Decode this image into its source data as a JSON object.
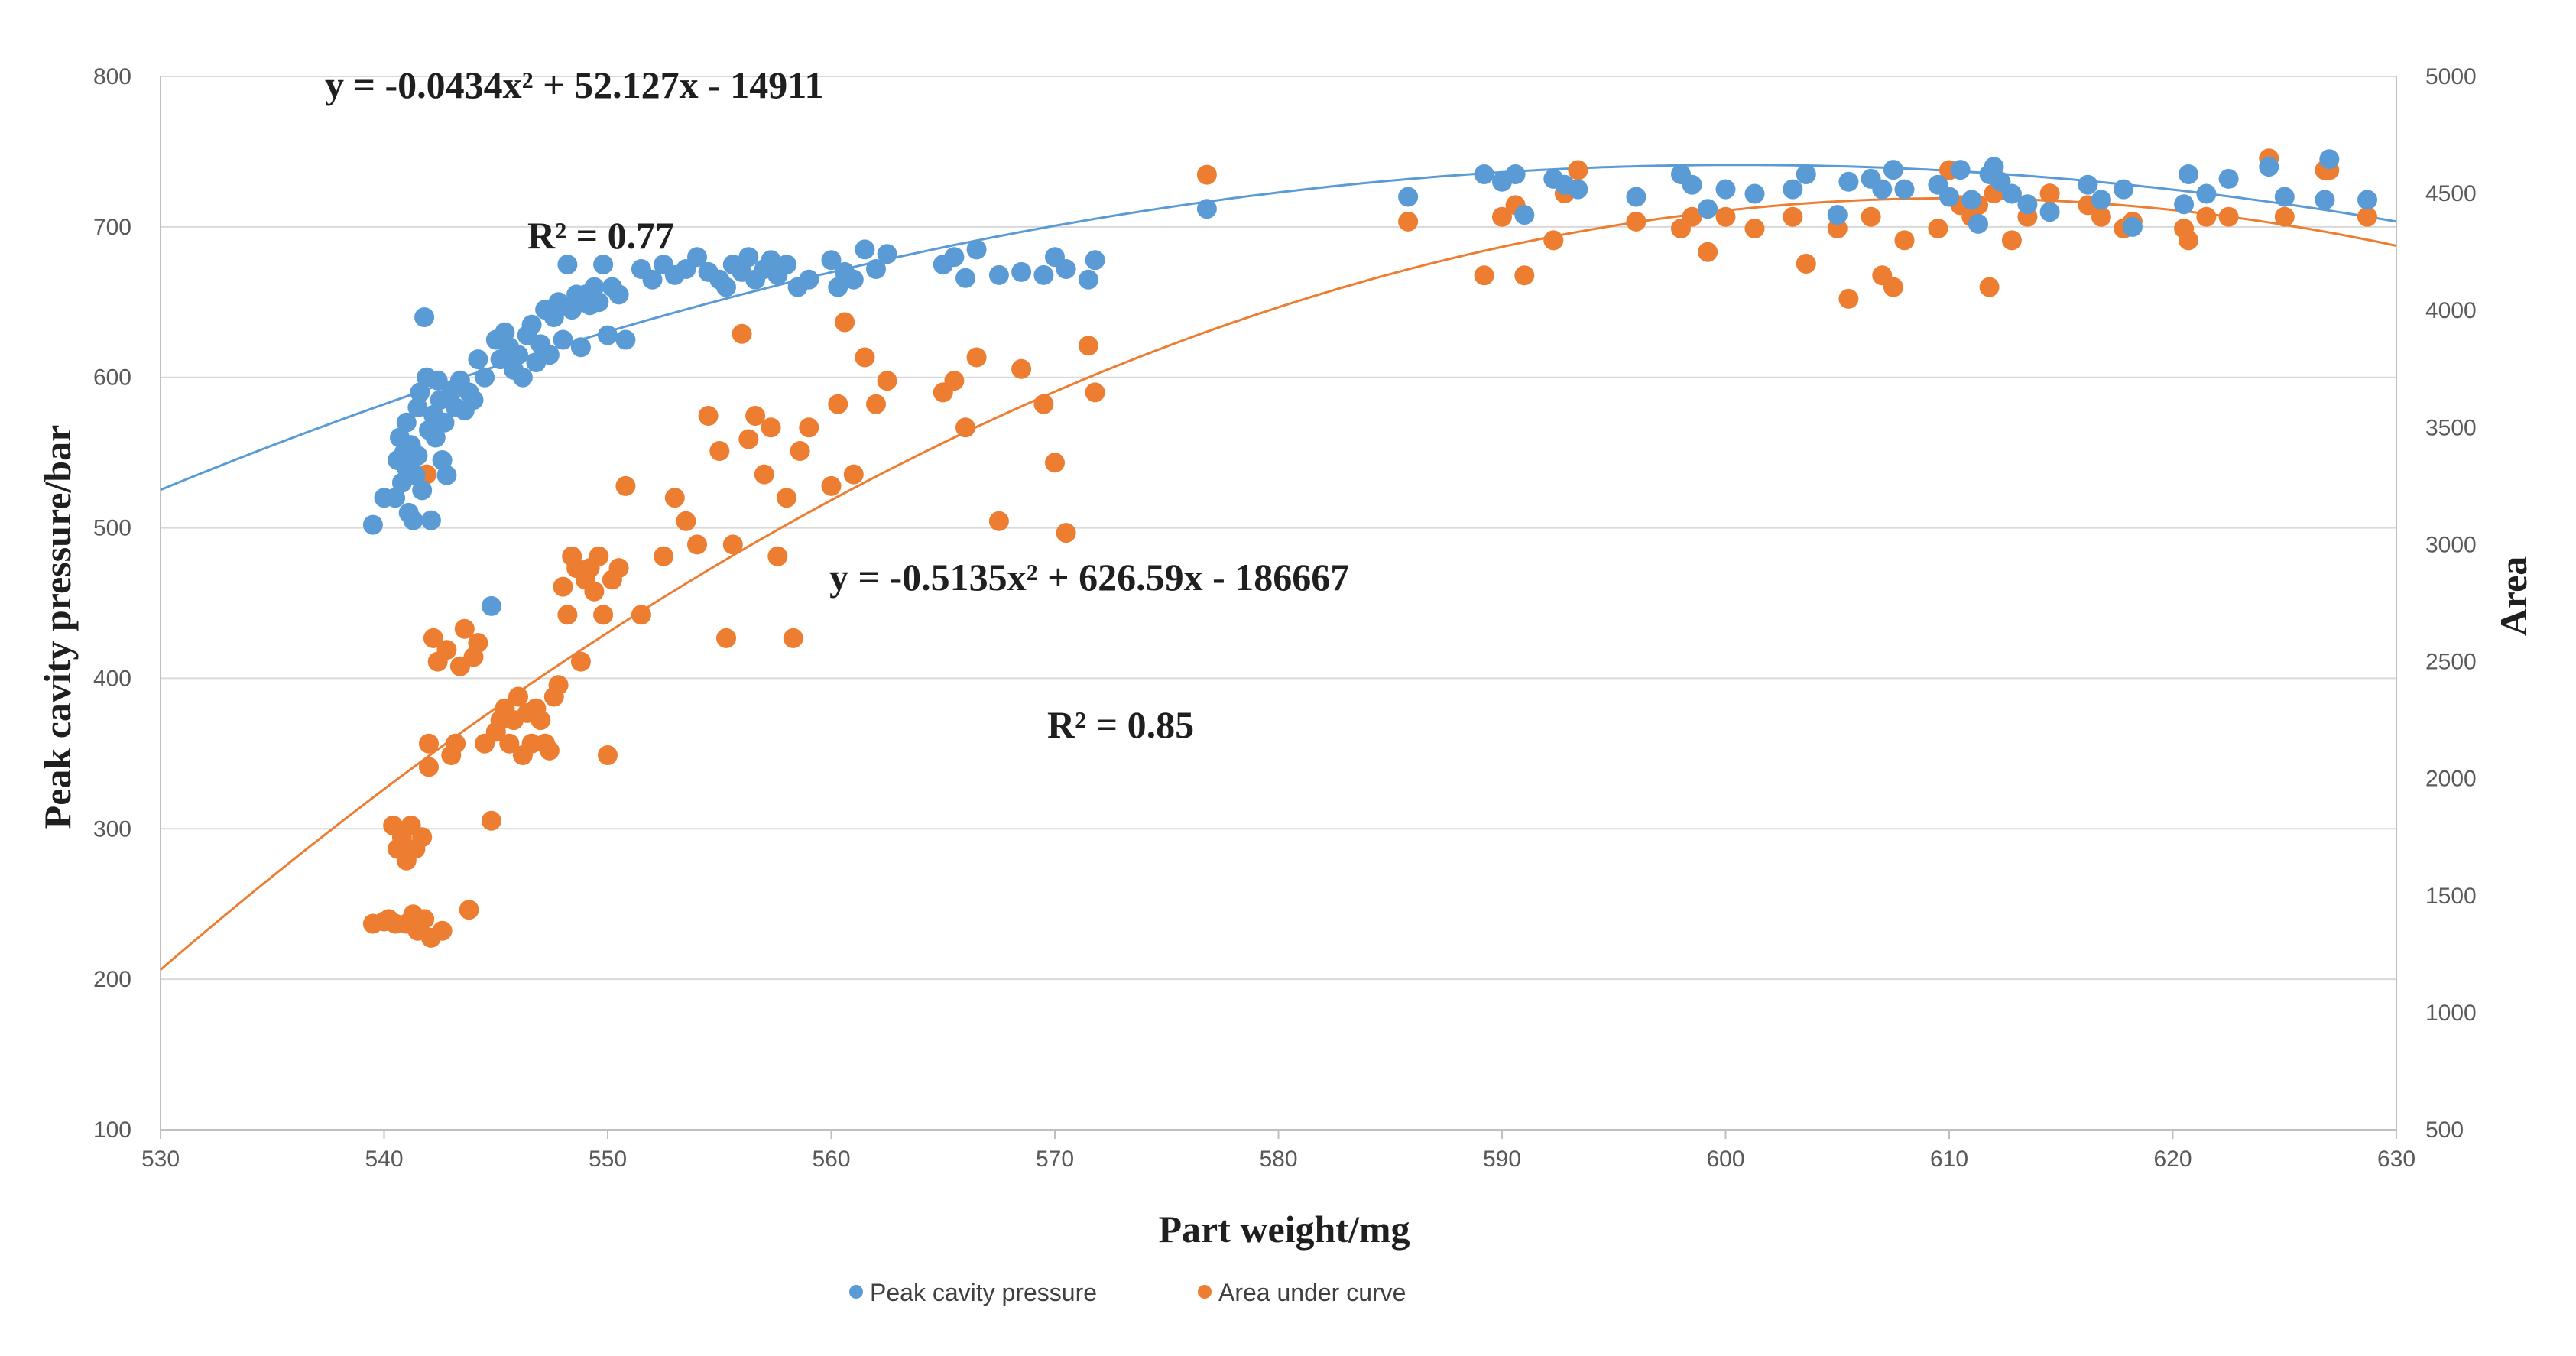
{
  "chart_data": {
    "type": "scatter",
    "title": "",
    "xlabel": "Part weight/mg",
    "ylabel_left": "Peak cavity pressure/bar",
    "ylabel_right": "Area",
    "xlim": [
      530,
      630
    ],
    "ylim_left": [
      100,
      800
    ],
    "ylim_right": [
      500,
      5000
    ],
    "xticks": [
      530,
      540,
      550,
      560,
      570,
      580,
      590,
      600,
      610,
      620,
      630
    ],
    "yticks_left": [
      100,
      200,
      300,
      400,
      500,
      600,
      700,
      800
    ],
    "yticks_right": [
      500,
      1000,
      1500,
      2000,
      2500,
      3000,
      3500,
      4000,
      4500,
      5000
    ],
    "grid": "horizontal",
    "legend_position": "bottom-center",
    "series": [
      {
        "name": "Peak cavity pressure",
        "axis": "left",
        "color": "#5B9BD5",
        "points": [
          [
            539.5,
            502
          ],
          [
            540,
            520
          ],
          [
            540.5,
            520
          ],
          [
            540.6,
            545
          ],
          [
            540.7,
            560
          ],
          [
            540.8,
            530
          ],
          [
            540.9,
            550
          ],
          [
            541,
            570
          ],
          [
            541,
            540
          ],
          [
            541.1,
            510
          ],
          [
            541.2,
            555
          ],
          [
            541.3,
            505
          ],
          [
            541.4,
            535
          ],
          [
            541.5,
            580
          ],
          [
            541.5,
            548
          ],
          [
            541.6,
            590
          ],
          [
            541.7,
            525
          ],
          [
            541.8,
            640
          ],
          [
            541.9,
            600
          ],
          [
            542,
            565
          ],
          [
            542.1,
            505
          ],
          [
            542.2,
            575
          ],
          [
            542.3,
            560
          ],
          [
            542.4,
            598
          ],
          [
            542.5,
            585
          ],
          [
            542.6,
            545
          ],
          [
            542.7,
            570
          ],
          [
            542.8,
            535
          ],
          [
            543,
            590
          ],
          [
            543.2,
            580
          ],
          [
            543.4,
            598
          ],
          [
            543.6,
            578
          ],
          [
            543.8,
            590
          ],
          [
            544,
            585
          ],
          [
            544.2,
            612
          ],
          [
            544.5,
            600
          ],
          [
            544.8,
            448
          ],
          [
            545,
            625
          ],
          [
            545.2,
            612
          ],
          [
            545.4,
            630
          ],
          [
            545.6,
            620
          ],
          [
            545.8,
            605
          ],
          [
            546,
            615
          ],
          [
            546.2,
            600
          ],
          [
            546.4,
            628
          ],
          [
            546.6,
            635
          ],
          [
            546.8,
            610
          ],
          [
            547,
            622
          ],
          [
            547.2,
            645
          ],
          [
            547.4,
            615
          ],
          [
            547.6,
            640
          ],
          [
            547.8,
            650
          ],
          [
            548,
            625
          ],
          [
            548.2,
            675
          ],
          [
            548.4,
            645
          ],
          [
            548.6,
            655
          ],
          [
            548.8,
            620
          ],
          [
            549,
            655
          ],
          [
            549.2,
            648
          ],
          [
            549.4,
            660
          ],
          [
            549.6,
            650
          ],
          [
            549.8,
            675
          ],
          [
            550,
            628
          ],
          [
            550.2,
            660
          ],
          [
            550.5,
            655
          ],
          [
            550.8,
            625
          ],
          [
            551.5,
            672
          ],
          [
            552,
            665
          ],
          [
            552.5,
            675
          ],
          [
            553,
            668
          ],
          [
            553.5,
            672
          ],
          [
            554,
            680
          ],
          [
            554.5,
            670
          ],
          [
            555,
            665
          ],
          [
            555.3,
            660
          ],
          [
            555.6,
            675
          ],
          [
            556,
            670
          ],
          [
            556.3,
            680
          ],
          [
            556.6,
            665
          ],
          [
            557,
            672
          ],
          [
            557.3,
            678
          ],
          [
            557.6,
            668
          ],
          [
            558,
            675
          ],
          [
            558.5,
            660
          ],
          [
            559,
            665
          ],
          [
            560,
            678
          ],
          [
            560.3,
            660
          ],
          [
            560.6,
            670
          ],
          [
            561,
            665
          ],
          [
            561.5,
            685
          ],
          [
            562,
            672
          ],
          [
            562.5,
            682
          ],
          [
            565,
            675
          ],
          [
            565.5,
            680
          ],
          [
            566,
            666
          ],
          [
            566.5,
            685
          ],
          [
            567.5,
            668
          ],
          [
            568.5,
            670
          ],
          [
            569.5,
            668
          ],
          [
            570,
            680
          ],
          [
            570.5,
            672
          ],
          [
            571.5,
            665
          ],
          [
            571.8,
            678
          ],
          [
            576.8,
            712
          ],
          [
            585.8,
            720
          ],
          [
            589.2,
            735
          ],
          [
            590,
            730
          ],
          [
            590.6,
            735
          ],
          [
            591,
            708
          ],
          [
            592.3,
            732
          ],
          [
            592.8,
            728
          ],
          [
            593.4,
            725
          ],
          [
            596,
            720
          ],
          [
            598,
            735
          ],
          [
            598.5,
            728
          ],
          [
            599.2,
            712
          ],
          [
            600,
            725
          ],
          [
            601.3,
            722
          ],
          [
            603,
            725
          ],
          [
            603.6,
            735
          ],
          [
            605,
            708
          ],
          [
            605.5,
            730
          ],
          [
            606.5,
            732
          ],
          [
            607,
            725
          ],
          [
            607.5,
            738
          ],
          [
            608,
            725
          ],
          [
            609.5,
            728
          ],
          [
            610,
            720
          ],
          [
            610.5,
            738
          ],
          [
            611,
            718
          ],
          [
            611.3,
            702
          ],
          [
            611.8,
            735
          ],
          [
            612,
            740
          ],
          [
            612.3,
            730
          ],
          [
            612.8,
            722
          ],
          [
            613.5,
            715
          ],
          [
            614.5,
            710
          ],
          [
            616.2,
            728
          ],
          [
            616.8,
            718
          ],
          [
            617.8,
            725
          ],
          [
            618.2,
            700
          ],
          [
            620.5,
            715
          ],
          [
            620.7,
            735
          ],
          [
            621.5,
            722
          ],
          [
            622.5,
            732
          ],
          [
            624.3,
            740
          ],
          [
            625,
            720
          ],
          [
            626.8,
            718
          ],
          [
            627,
            745
          ],
          [
            628.7,
            718
          ]
        ]
      },
      {
        "name": "Area under curve",
        "axis": "right",
        "color": "#ED7D31",
        "points": [
          [
            539.5,
            1380
          ],
          [
            540,
            1390
          ],
          [
            540.2,
            1400
          ],
          [
            540.4,
            1800
          ],
          [
            540.5,
            1380
          ],
          [
            540.6,
            1700
          ],
          [
            540.8,
            1750
          ],
          [
            541,
            1380
          ],
          [
            541,
            1650
          ],
          [
            541.2,
            1800
          ],
          [
            541.3,
            1420
          ],
          [
            541.4,
            1700
          ],
          [
            541.5,
            1350
          ],
          [
            541.6,
            1380
          ],
          [
            541.7,
            1750
          ],
          [
            541.8,
            1400
          ],
          [
            541.9,
            3300
          ],
          [
            542,
            2050
          ],
          [
            542,
            2150
          ],
          [
            542.1,
            1320
          ],
          [
            542.2,
            2600
          ],
          [
            542.4,
            2500
          ],
          [
            542.6,
            1350
          ],
          [
            542.8,
            2550
          ],
          [
            543,
            2100
          ],
          [
            543.2,
            2150
          ],
          [
            543.4,
            2480
          ],
          [
            543.6,
            2640
          ],
          [
            543.8,
            1440
          ],
          [
            544,
            2520
          ],
          [
            544.2,
            2580
          ],
          [
            544.5,
            2150
          ],
          [
            544.8,
            1820
          ],
          [
            545,
            2200
          ],
          [
            545.2,
            2250
          ],
          [
            545.4,
            2300
          ],
          [
            545.6,
            2150
          ],
          [
            545.8,
            2250
          ],
          [
            546,
            2350
          ],
          [
            546.2,
            2100
          ],
          [
            546.4,
            2280
          ],
          [
            546.6,
            2150
          ],
          [
            546.8,
            2300
          ],
          [
            547,
            2250
          ],
          [
            547.2,
            2150
          ],
          [
            547.4,
            2120
          ],
          [
            547.6,
            2350
          ],
          [
            547.8,
            2400
          ],
          [
            548,
            2820
          ],
          [
            548.2,
            2700
          ],
          [
            548.4,
            2950
          ],
          [
            548.6,
            2900
          ],
          [
            548.8,
            2500
          ],
          [
            549,
            2850
          ],
          [
            549.2,
            2900
          ],
          [
            549.4,
            2800
          ],
          [
            549.6,
            2950
          ],
          [
            549.8,
            2700
          ],
          [
            550,
            2100
          ],
          [
            550.2,
            2850
          ],
          [
            550.5,
            2900
          ],
          [
            550.8,
            3250
          ],
          [
            551.5,
            2700
          ],
          [
            552.5,
            2950
          ],
          [
            553,
            3200
          ],
          [
            553.5,
            3100
          ],
          [
            554,
            3000
          ],
          [
            554.5,
            3550
          ],
          [
            555,
            3400
          ],
          [
            555.3,
            2600
          ],
          [
            555.6,
            3000
          ],
          [
            556,
            3900
          ],
          [
            556.3,
            3450
          ],
          [
            556.6,
            3550
          ],
          [
            557,
            3300
          ],
          [
            557.3,
            3500
          ],
          [
            557.6,
            2950
          ],
          [
            558,
            3200
          ],
          [
            558.3,
            2600
          ],
          [
            558.6,
            3400
          ],
          [
            559,
            3500
          ],
          [
            560,
            3250
          ],
          [
            560.3,
            3600
          ],
          [
            560.6,
            3950
          ],
          [
            561,
            3300
          ],
          [
            561.5,
            3800
          ],
          [
            562,
            3600
          ],
          [
            562.5,
            3700
          ],
          [
            565,
            3650
          ],
          [
            565.5,
            3700
          ],
          [
            566,
            3500
          ],
          [
            566.5,
            3800
          ],
          [
            567.5,
            3100
          ],
          [
            568.5,
            3750
          ],
          [
            569.5,
            3600
          ],
          [
            570,
            3350
          ],
          [
            570.5,
            3050
          ],
          [
            571.5,
            3850
          ],
          [
            571.8,
            3650
          ],
          [
            576.8,
            4580
          ],
          [
            585.8,
            4380
          ],
          [
            589.2,
            4150
          ],
          [
            590,
            4400
          ],
          [
            590.6,
            4450
          ],
          [
            591,
            4150
          ],
          [
            592.3,
            4300
          ],
          [
            592.8,
            4500
          ],
          [
            593.4,
            4600
          ],
          [
            596,
            4380
          ],
          [
            598,
            4350
          ],
          [
            598.5,
            4400
          ],
          [
            599.2,
            4250
          ],
          [
            600,
            4400
          ],
          [
            601.3,
            4350
          ],
          [
            603,
            4400
          ],
          [
            603.6,
            4200
          ],
          [
            605,
            4350
          ],
          [
            605.5,
            4050
          ],
          [
            606.5,
            4400
          ],
          [
            607,
            4150
          ],
          [
            607.5,
            4100
          ],
          [
            608,
            4300
          ],
          [
            609.5,
            4350
          ],
          [
            610,
            4600
          ],
          [
            610.5,
            4450
          ],
          [
            611,
            4400
          ],
          [
            611.3,
            4450
          ],
          [
            611.8,
            4100
          ],
          [
            612,
            4500
          ],
          [
            612.3,
            4550
          ],
          [
            612.8,
            4300
          ],
          [
            613.5,
            4400
          ],
          [
            614.5,
            4500
          ],
          [
            616.2,
            4450
          ],
          [
            616.8,
            4400
          ],
          [
            617.8,
            4350
          ],
          [
            618.2,
            4380
          ],
          [
            620.5,
            4350
          ],
          [
            620.7,
            4300
          ],
          [
            621.5,
            4400
          ],
          [
            622.5,
            4400
          ],
          [
            624.3,
            4650
          ],
          [
            625,
            4400
          ],
          [
            626.8,
            4600
          ],
          [
            627,
            4600
          ],
          [
            628.7,
            4400
          ]
        ]
      }
    ],
    "trendlines": [
      {
        "series": "Peak cavity pressure",
        "axis": "left",
        "type": "polynomial",
        "coefficients": [
          -0.0434,
          52.127,
          -14911
        ],
        "equation": "y = -0.0434x² + 52.127x - 14911",
        "r2": "R² = 0.77"
      },
      {
        "series": "Area under curve",
        "axis": "right",
        "type": "polynomial",
        "coefficients": [
          -0.5135,
          626.59,
          -186667
        ],
        "equation": "y = -0.5135x² + 626.59x - 186667",
        "r2": "R² = 0.85"
      }
    ]
  }
}
